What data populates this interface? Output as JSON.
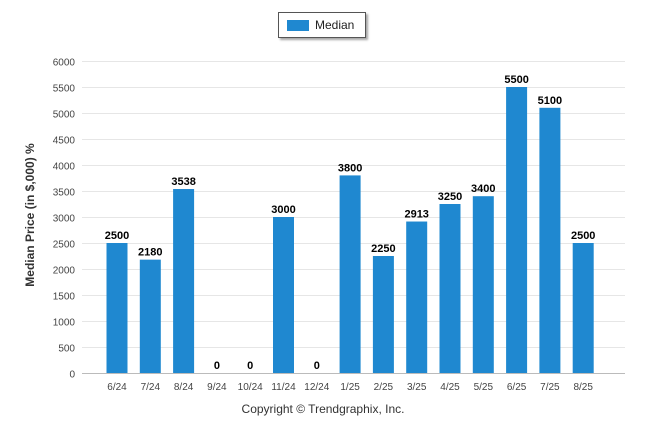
{
  "legend": {
    "label": "Median",
    "color": "#1f88d0"
  },
  "footer": {
    "copyright": "Copyright © Trendgraphix, Inc."
  },
  "chart_data": {
    "type": "bar",
    "title": "",
    "xlabel": "",
    "ylabel": "Median Price (in $,000) %",
    "ylim": [
      0,
      6000
    ],
    "yticks": [
      0,
      500,
      1000,
      1500,
      2000,
      2500,
      3000,
      3500,
      4000,
      4500,
      5000,
      5500,
      6000
    ],
    "grid": true,
    "legend_position": "top-center",
    "categories": [
      "6/24",
      "7/24",
      "8/24",
      "9/24",
      "10/24",
      "11/24",
      "12/24",
      "1/25",
      "2/25",
      "3/25",
      "4/25",
      "5/25",
      "6/25",
      "7/25",
      "8/25"
    ],
    "series": [
      {
        "name": "Median",
        "color": "#1f88d0",
        "values": [
          2500,
          2180,
          3538,
          0,
          0,
          3000,
          0,
          3800,
          2250,
          2913,
          3250,
          3400,
          5500,
          5100,
          2500
        ]
      }
    ]
  }
}
